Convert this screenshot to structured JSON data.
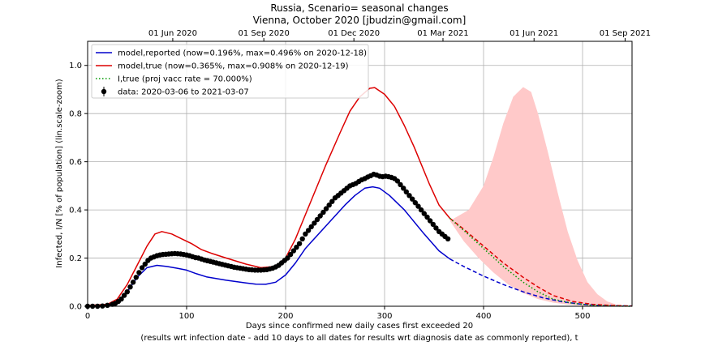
{
  "chart_data": {
    "type": "line",
    "title": "Russia, Scenario= seasonal changes",
    "subtitle": "Vienna, October 2020 [jbudzin@gmail.com]",
    "xlabel": "Days since confirmed new daily cases first exceeded 20",
    "xlabel2": "(results wrt infection date - add 10 days to all dates for results wrt diagnosis date as commonly reported), t",
    "ylabel": "Infected, I/N [% of population] (lin.scale-zoom)",
    "xlim": [
      0,
      550
    ],
    "ylim": [
      0,
      1.1
    ],
    "grid": true,
    "legend_position": "top-left",
    "x_ticks": [
      0,
      100,
      200,
      300,
      400,
      500
    ],
    "y_ticks": [
      0.0,
      0.2,
      0.4,
      0.6,
      0.8,
      1.0
    ],
    "top_axis": {
      "ticks": [
        {
          "x": 86,
          "label": "01 Jun 2020"
        },
        {
          "x": 178,
          "label": "01 Sep 2020"
        },
        {
          "x": 269,
          "label": "01 Dec 2020"
        },
        {
          "x": 359,
          "label": "01 Mar 2021"
        },
        {
          "x": 451,
          "label": "01 Jun 2021"
        },
        {
          "x": 543,
          "label": "01 Sep 2021"
        }
      ]
    },
    "band": {
      "color": "#ffc9c9",
      "upper": [
        [
          366,
          0.355
        ],
        [
          385,
          0.4
        ],
        [
          400,
          0.5
        ],
        [
          410,
          0.62
        ],
        [
          420,
          0.76
        ],
        [
          430,
          0.87
        ],
        [
          440,
          0.91
        ],
        [
          448,
          0.89
        ],
        [
          455,
          0.8
        ],
        [
          465,
          0.64
        ],
        [
          475,
          0.47
        ],
        [
          485,
          0.31
        ],
        [
          495,
          0.19
        ],
        [
          505,
          0.1
        ],
        [
          515,
          0.05
        ],
        [
          525,
          0.02
        ],
        [
          535,
          0.006
        ],
        [
          545,
          0.002
        ],
        [
          550,
          0.001
        ]
      ],
      "lower": [
        [
          366,
          0.355
        ],
        [
          380,
          0.27
        ],
        [
          395,
          0.2
        ],
        [
          410,
          0.14
        ],
        [
          425,
          0.09
        ],
        [
          440,
          0.055
        ],
        [
          455,
          0.03
        ],
        [
          470,
          0.015
        ],
        [
          485,
          0.007
        ],
        [
          500,
          0.003
        ],
        [
          515,
          0.001
        ],
        [
          530,
          0.0005
        ],
        [
          550,
          0.0
        ]
      ]
    },
    "series": [
      {
        "name": "model,reported (now=0.196%, max=0.496% on 2020-12-18)",
        "color": "#0000cc",
        "style": "solid",
        "points": [
          [
            0,
            0.002
          ],
          [
            20,
            0.005
          ],
          [
            30,
            0.02
          ],
          [
            40,
            0.06
          ],
          [
            50,
            0.12
          ],
          [
            60,
            0.16
          ],
          [
            70,
            0.17
          ],
          [
            80,
            0.165
          ],
          [
            90,
            0.158
          ],
          [
            100,
            0.15
          ],
          [
            110,
            0.135
          ],
          [
            120,
            0.122
          ],
          [
            140,
            0.108
          ],
          [
            160,
            0.097
          ],
          [
            170,
            0.092
          ],
          [
            180,
            0.091
          ],
          [
            190,
            0.1
          ],
          [
            200,
            0.13
          ],
          [
            210,
            0.18
          ],
          [
            220,
            0.24
          ],
          [
            240,
            0.33
          ],
          [
            260,
            0.42
          ],
          [
            270,
            0.46
          ],
          [
            280,
            0.49
          ],
          [
            288,
            0.496
          ],
          [
            295,
            0.49
          ],
          [
            305,
            0.46
          ],
          [
            320,
            0.4
          ],
          [
            340,
            0.3
          ],
          [
            355,
            0.23
          ],
          [
            366,
            0.196
          ]
        ]
      },
      {
        "name": "model,reported projection",
        "color": "#0000cc",
        "style": "dashed",
        "points": [
          [
            366,
            0.196
          ],
          [
            380,
            0.165
          ],
          [
            400,
            0.125
          ],
          [
            420,
            0.09
          ],
          [
            440,
            0.06
          ],
          [
            460,
            0.035
          ],
          [
            480,
            0.018
          ],
          [
            500,
            0.008
          ],
          [
            520,
            0.003
          ],
          [
            550,
            0.001
          ]
        ]
      },
      {
        "name": "model,true (now=0.365%, max=0.908% on 2020-12-19)",
        "color": "#dd0000",
        "style": "solid",
        "points": [
          [
            0,
            0.003
          ],
          [
            20,
            0.008
          ],
          [
            30,
            0.03
          ],
          [
            40,
            0.09
          ],
          [
            50,
            0.17
          ],
          [
            60,
            0.25
          ],
          [
            68,
            0.3
          ],
          [
            75,
            0.31
          ],
          [
            85,
            0.3
          ],
          [
            95,
            0.28
          ],
          [
            105,
            0.26
          ],
          [
            115,
            0.235
          ],
          [
            125,
            0.22
          ],
          [
            140,
            0.2
          ],
          [
            160,
            0.175
          ],
          [
            175,
            0.16
          ],
          [
            190,
            0.165
          ],
          [
            200,
            0.2
          ],
          [
            210,
            0.28
          ],
          [
            220,
            0.38
          ],
          [
            240,
            0.58
          ],
          [
            255,
            0.72
          ],
          [
            265,
            0.81
          ],
          [
            275,
            0.87
          ],
          [
            285,
            0.905
          ],
          [
            290,
            0.908
          ],
          [
            300,
            0.88
          ],
          [
            310,
            0.83
          ],
          [
            320,
            0.75
          ],
          [
            330,
            0.66
          ],
          [
            345,
            0.51
          ],
          [
            355,
            0.42
          ],
          [
            366,
            0.365
          ]
        ]
      },
      {
        "name": "model,true projection",
        "color": "#dd0000",
        "style": "dashed",
        "points": [
          [
            366,
            0.365
          ],
          [
            380,
            0.32
          ],
          [
            400,
            0.25
          ],
          [
            420,
            0.18
          ],
          [
            440,
            0.12
          ],
          [
            455,
            0.08
          ],
          [
            470,
            0.045
          ],
          [
            490,
            0.02
          ],
          [
            510,
            0.008
          ],
          [
            530,
            0.003
          ],
          [
            550,
            0.001
          ]
        ]
      },
      {
        "name": "I,true (proj vacc rate = 70.000%)",
        "color": "#009900",
        "style": "dotted",
        "points": [
          [
            366,
            0.365
          ],
          [
            380,
            0.315
          ],
          [
            400,
            0.24
          ],
          [
            420,
            0.165
          ],
          [
            440,
            0.1
          ],
          [
            455,
            0.06
          ],
          [
            470,
            0.03
          ],
          [
            490,
            0.012
          ],
          [
            510,
            0.004
          ],
          [
            530,
            0.001
          ],
          [
            550,
            0.0
          ]
        ]
      }
    ],
    "scatter": {
      "name": "data: 2020-03-06 to 2021-03-07",
      "color": "#000000",
      "points": [
        [
          0,
          0.0
        ],
        [
          5,
          0.0
        ],
        [
          10,
          0.0
        ],
        [
          15,
          0.001
        ],
        [
          20,
          0.004
        ],
        [
          25,
          0.008
        ],
        [
          28,
          0.012
        ],
        [
          31,
          0.02
        ],
        [
          34,
          0.03
        ],
        [
          37,
          0.045
        ],
        [
          40,
          0.06
        ],
        [
          43,
          0.08
        ],
        [
          46,
          0.1
        ],
        [
          49,
          0.12
        ],
        [
          52,
          0.14
        ],
        [
          55,
          0.16
        ],
        [
          58,
          0.175
        ],
        [
          61,
          0.19
        ],
        [
          64,
          0.2
        ],
        [
          67,
          0.205
        ],
        [
          70,
          0.21
        ],
        [
          73,
          0.213
        ],
        [
          76,
          0.215
        ],
        [
          79,
          0.216
        ],
        [
          82,
          0.217
        ],
        [
          85,
          0.218
        ],
        [
          88,
          0.219
        ],
        [
          91,
          0.218
        ],
        [
          94,
          0.217
        ],
        [
          97,
          0.215
        ],
        [
          100,
          0.213
        ],
        [
          103,
          0.21
        ],
        [
          106,
          0.206
        ],
        [
          109,
          0.202
        ],
        [
          112,
          0.2
        ],
        [
          115,
          0.196
        ],
        [
          118,
          0.192
        ],
        [
          121,
          0.189
        ],
        [
          124,
          0.186
        ],
        [
          127,
          0.183
        ],
        [
          130,
          0.18
        ],
        [
          133,
          0.177
        ],
        [
          136,
          0.174
        ],
        [
          139,
          0.171
        ],
        [
          142,
          0.168
        ],
        [
          145,
          0.165
        ],
        [
          148,
          0.162
        ],
        [
          151,
          0.16
        ],
        [
          154,
          0.158
        ],
        [
          157,
          0.156
        ],
        [
          160,
          0.154
        ],
        [
          163,
          0.152
        ],
        [
          166,
          0.151
        ],
        [
          169,
          0.15
        ],
        [
          172,
          0.15
        ],
        [
          175,
          0.15
        ],
        [
          178,
          0.151
        ],
        [
          181,
          0.152
        ],
        [
          184,
          0.155
        ],
        [
          187,
          0.158
        ],
        [
          190,
          0.163
        ],
        [
          193,
          0.17
        ],
        [
          196,
          0.18
        ],
        [
          199,
          0.19
        ],
        [
          202,
          0.2
        ],
        [
          205,
          0.215
        ],
        [
          208,
          0.23
        ],
        [
          211,
          0.245
        ],
        [
          214,
          0.26
        ],
        [
          217,
          0.28
        ],
        [
          220,
          0.3
        ],
        [
          223,
          0.315
        ],
        [
          226,
          0.33
        ],
        [
          229,
          0.345
        ],
        [
          232,
          0.36
        ],
        [
          235,
          0.375
        ],
        [
          238,
          0.39
        ],
        [
          241,
          0.405
        ],
        [
          244,
          0.42
        ],
        [
          247,
          0.435
        ],
        [
          250,
          0.45
        ],
        [
          253,
          0.46
        ],
        [
          256,
          0.47
        ],
        [
          259,
          0.48
        ],
        [
          262,
          0.49
        ],
        [
          265,
          0.5
        ],
        [
          268,
          0.505
        ],
        [
          271,
          0.51
        ],
        [
          274,
          0.518
        ],
        [
          277,
          0.525
        ],
        [
          280,
          0.53
        ],
        [
          283,
          0.537
        ],
        [
          286,
          0.542
        ],
        [
          289,
          0.548
        ],
        [
          292,
          0.545
        ],
        [
          295,
          0.54
        ],
        [
          298,
          0.538
        ],
        [
          301,
          0.54
        ],
        [
          304,
          0.538
        ],
        [
          307,
          0.535
        ],
        [
          310,
          0.53
        ],
        [
          313,
          0.52
        ],
        [
          316,
          0.505
        ],
        [
          319,
          0.49
        ],
        [
          322,
          0.475
        ],
        [
          325,
          0.46
        ],
        [
          328,
          0.445
        ],
        [
          331,
          0.43
        ],
        [
          334,
          0.415
        ],
        [
          337,
          0.4
        ],
        [
          340,
          0.385
        ],
        [
          343,
          0.37
        ],
        [
          346,
          0.355
        ],
        [
          349,
          0.34
        ],
        [
          352,
          0.325
        ],
        [
          355,
          0.31
        ],
        [
          358,
          0.3
        ],
        [
          361,
          0.29
        ],
        [
          364,
          0.28
        ]
      ]
    }
  }
}
